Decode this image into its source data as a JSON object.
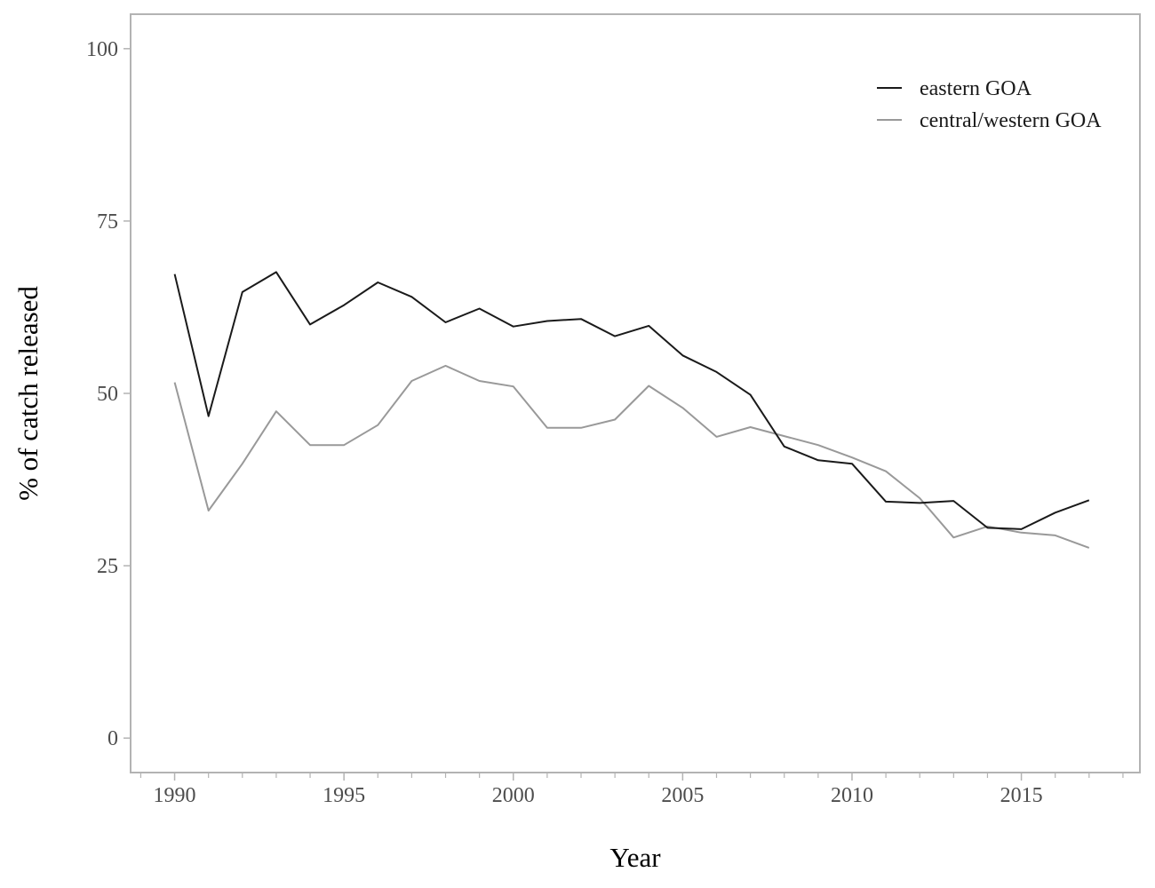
{
  "chart_data": {
    "type": "line",
    "title": "",
    "xlabel": "Year",
    "ylabel": "% of catch released",
    "x": [
      1990,
      1991,
      1992,
      1993,
      1994,
      1995,
      1996,
      1997,
      1998,
      1999,
      2000,
      2001,
      2002,
      2003,
      2004,
      2005,
      2006,
      2007,
      2008,
      2009,
      2010,
      2011,
      2012,
      2013,
      2014,
      2015,
      2016,
      2017
    ],
    "xlim": [
      1988.7,
      2018.5
    ],
    "ylim": [
      -5,
      105
    ],
    "xticks": [
      1990,
      1995,
      2000,
      2005,
      2010,
      2015
    ],
    "xtick_labels": [
      "1990",
      "1995",
      "2000",
      "2005",
      "2010",
      "2015"
    ],
    "yticks": [
      0,
      25,
      50,
      75,
      100
    ],
    "ytick_labels": [
      "0",
      "25",
      "50",
      "75",
      "100"
    ],
    "grid": false,
    "legend_position": "top-right",
    "series": [
      {
        "name": "eastern GOA",
        "color": "#1a1a1a",
        "values": [
          67.3,
          46.7,
          64.7,
          67.6,
          60.0,
          62.8,
          66.1,
          64.0,
          60.3,
          62.3,
          59.7,
          60.5,
          60.8,
          58.3,
          59.8,
          55.5,
          53.1,
          49.8,
          42.3,
          40.3,
          39.8,
          34.3,
          34.1,
          34.4,
          30.5,
          30.3,
          32.7,
          34.5
        ]
      },
      {
        "name": "central/western GOA",
        "color": "#999999",
        "values": [
          51.6,
          33.0,
          39.8,
          47.4,
          42.5,
          42.5,
          45.4,
          51.8,
          54.0,
          51.8,
          51.0,
          45.0,
          45.0,
          46.2,
          51.1,
          47.9,
          43.7,
          45.1,
          43.8,
          42.5,
          40.7,
          38.7,
          34.8,
          29.1,
          30.7,
          29.8,
          29.4,
          27.6
        ]
      }
    ]
  }
}
